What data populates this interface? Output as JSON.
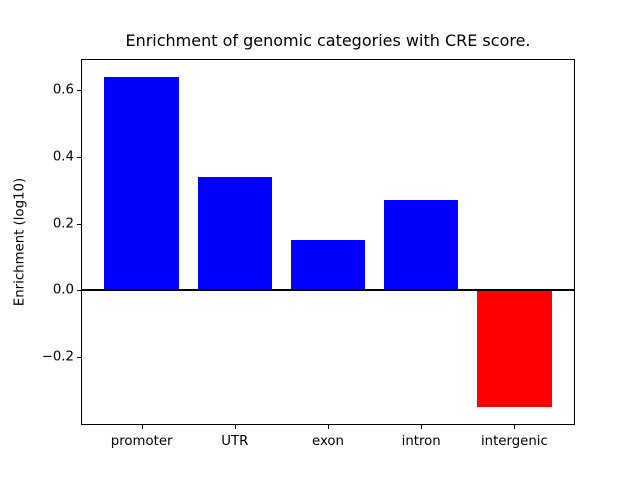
{
  "title": "Enrichment of genomic categories with CRE score.",
  "colors": {
    "background": "#ffffff",
    "axis": "#000000",
    "text": "#000000",
    "positive_bar": "#0000ff",
    "negative_bar": "#ff0000"
  },
  "chart_data": {
    "type": "bar",
    "title": "Enrichment of genomic categories with CRE score.",
    "xlabel": "",
    "ylabel": "Enrichment (log10)",
    "categories": [
      "promoter",
      "UTR",
      "exon",
      "intron",
      "intergenic"
    ],
    "values": [
      0.64,
      0.34,
      0.15,
      0.27,
      -0.35
    ],
    "bar_colors": [
      "#0000ff",
      "#0000ff",
      "#0000ff",
      "#0000ff",
      "#ff0000"
    ],
    "bar_width": 0.8,
    "ylim": [
      -0.4,
      0.69
    ],
    "yticks": [
      0.6,
      0.4,
      0.2,
      0.0,
      -0.2
    ],
    "ytick_labels": [
      "0.6",
      "0.4",
      "0.2",
      "0.0",
      "−0.2"
    ],
    "grid": false,
    "legend": null,
    "zero_line": true
  }
}
